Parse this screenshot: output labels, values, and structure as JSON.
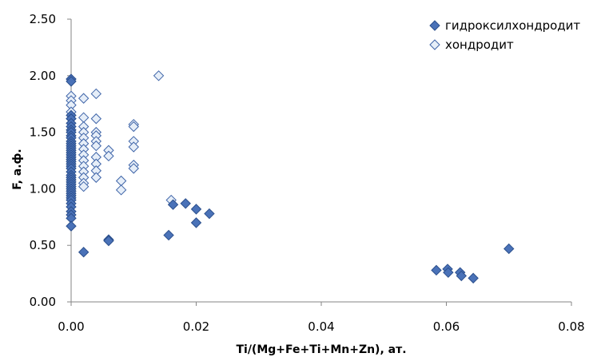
{
  "chart_data": {
    "type": "scatter",
    "xlabel": "Ti/(Mg+Fe+Ti+Mn+Zn), ат.",
    "ylabel": "F, а.ф.",
    "xlim": [
      0,
      0.08
    ],
    "ylim": [
      0,
      2.5
    ],
    "x_ticks": [
      "0.00",
      "0.02",
      "0.04",
      "0.06",
      "0.08"
    ],
    "y_ticks": [
      "0.00",
      "0.50",
      "1.00",
      "1.50",
      "2.00",
      "2.50"
    ],
    "grid": false,
    "legend": "top-right",
    "colors": {
      "filled_fill": "#4a72b8",
      "filled_stroke": "#2b4f8c",
      "open_fill": "#e6eef8",
      "open_stroke": "#3e64a8",
      "axis": "#868686"
    },
    "series": [
      {
        "name": "гидроксилхондродит",
        "marker": "diamond-filled",
        "points": [
          [
            0,
            1.97
          ],
          [
            0,
            1.95
          ],
          [
            0,
            1.65
          ],
          [
            0,
            1.62
          ],
          [
            0,
            1.58
          ],
          [
            0,
            1.55
          ],
          [
            0,
            1.52
          ],
          [
            0,
            1.5
          ],
          [
            0,
            1.47
          ],
          [
            0,
            1.45
          ],
          [
            0,
            1.42
          ],
          [
            0,
            1.4
          ],
          [
            0,
            1.38
          ],
          [
            0,
            1.36
          ],
          [
            0,
            1.34
          ],
          [
            0,
            1.32
          ],
          [
            0,
            1.3
          ],
          [
            0,
            1.28
          ],
          [
            0,
            1.26
          ],
          [
            0,
            1.24
          ],
          [
            0,
            1.22
          ],
          [
            0,
            1.2
          ],
          [
            0,
            1.18
          ],
          [
            0,
            1.15
          ],
          [
            0,
            1.12
          ],
          [
            0,
            1.1
          ],
          [
            0,
            1.08
          ],
          [
            0,
            1.06
          ],
          [
            0,
            1.04
          ],
          [
            0,
            1.02
          ],
          [
            0,
            1.0
          ],
          [
            0,
            0.98
          ],
          [
            0,
            0.96
          ],
          [
            0,
            0.94
          ],
          [
            0,
            0.92
          ],
          [
            0,
            0.9
          ],
          [
            0,
            0.87
          ],
          [
            0,
            0.84
          ],
          [
            0,
            0.8
          ],
          [
            0,
            0.77
          ],
          [
            0,
            0.74
          ],
          [
            0,
            0.67
          ],
          [
            0.002,
            0.44
          ],
          [
            0.006,
            0.55
          ],
          [
            0.006,
            0.54
          ],
          [
            0.0156,
            0.59
          ],
          [
            0.0163,
            0.86
          ],
          [
            0.0183,
            0.87
          ],
          [
            0.02,
            0.82
          ],
          [
            0.02,
            0.7
          ],
          [
            0.0221,
            0.78
          ],
          [
            0.0584,
            0.28
          ],
          [
            0.0602,
            0.29
          ],
          [
            0.0603,
            0.26
          ],
          [
            0.0622,
            0.26
          ],
          [
            0.0624,
            0.23
          ],
          [
            0.0643,
            0.21
          ],
          [
            0.07,
            0.47
          ]
        ]
      },
      {
        "name": "хондродит",
        "marker": "diamond-open",
        "points": [
          [
            0,
            1.97
          ],
          [
            0,
            1.82
          ],
          [
            0,
            1.78
          ],
          [
            0,
            1.74
          ],
          [
            0,
            1.68
          ],
          [
            0,
            1.62
          ],
          [
            0.002,
            1.8
          ],
          [
            0.002,
            1.63
          ],
          [
            0.002,
            1.55
          ],
          [
            0.002,
            1.5
          ],
          [
            0.002,
            1.45
          ],
          [
            0.002,
            1.4
          ],
          [
            0.002,
            1.35
          ],
          [
            0.002,
            1.3
          ],
          [
            0.002,
            1.25
          ],
          [
            0.002,
            1.2
          ],
          [
            0.002,
            1.15
          ],
          [
            0.002,
            1.1
          ],
          [
            0.002,
            1.05
          ],
          [
            0.002,
            1.02
          ],
          [
            0.004,
            1.84
          ],
          [
            0.004,
            1.62
          ],
          [
            0.004,
            1.5
          ],
          [
            0.004,
            1.47
          ],
          [
            0.004,
            1.42
          ],
          [
            0.004,
            1.38
          ],
          [
            0.004,
            1.28
          ],
          [
            0.004,
            1.22
          ],
          [
            0.004,
            1.16
          ],
          [
            0.004,
            1.1
          ],
          [
            0.006,
            1.34
          ],
          [
            0.006,
            1.29
          ],
          [
            0.008,
            1.07
          ],
          [
            0.008,
            0.99
          ],
          [
            0.01,
            1.57
          ],
          [
            0.01,
            1.55
          ],
          [
            0.01,
            1.42
          ],
          [
            0.01,
            1.37
          ],
          [
            0.01,
            1.21
          ],
          [
            0.01,
            1.18
          ],
          [
            0.014,
            2.0
          ],
          [
            0.016,
            0.9
          ]
        ]
      }
    ]
  }
}
